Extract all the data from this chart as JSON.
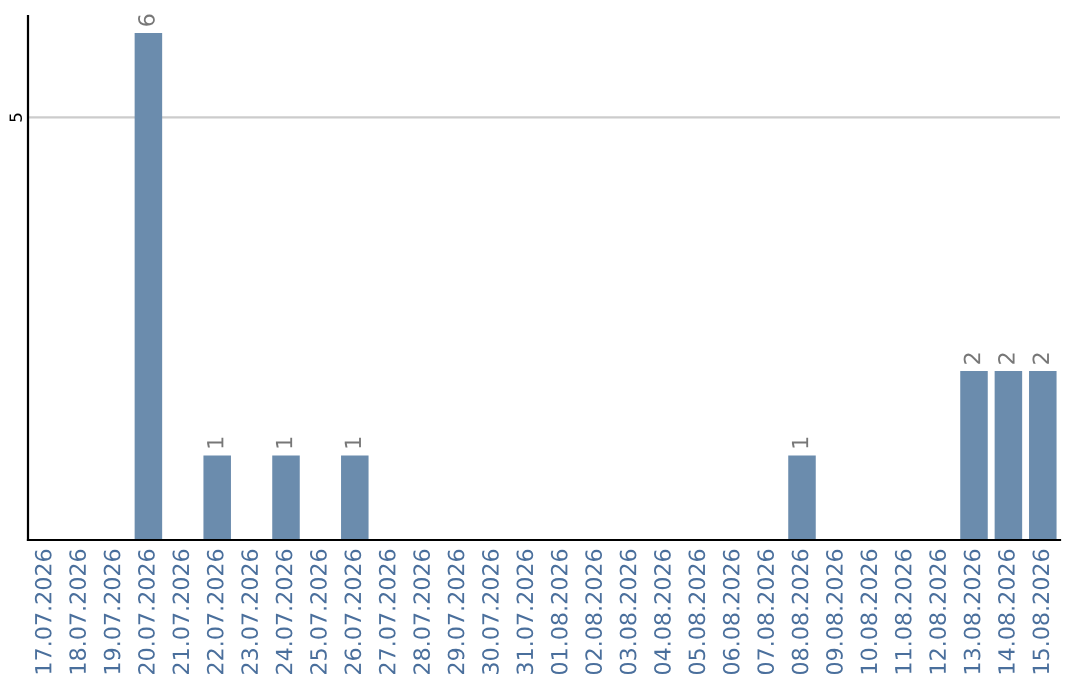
{
  "chart_data": {
    "type": "bar",
    "categories": [
      "17.07.2026",
      "18.07.2026",
      "19.07.2026",
      "20.07.2026",
      "21.07.2026",
      "22.07.2026",
      "23.07.2026",
      "24.07.2026",
      "25.07.2026",
      "26.07.2026",
      "27.07.2026",
      "28.07.2026",
      "29.07.2026",
      "30.07.2026",
      "31.07.2026",
      "01.08.2026",
      "02.08.2026",
      "03.08.2026",
      "04.08.2026",
      "05.08.2026",
      "06.08.2026",
      "07.08.2026",
      "08.08.2026",
      "09.08.2026",
      "10.08.2026",
      "11.08.2026",
      "12.08.2026",
      "13.08.2026",
      "14.08.2026",
      "15.08.2026"
    ],
    "values": [
      0,
      0,
      0,
      6,
      0,
      1,
      0,
      1,
      0,
      1,
      0,
      0,
      0,
      0,
      0,
      0,
      0,
      0,
      0,
      0,
      0,
      0,
      1,
      0,
      0,
      0,
      0,
      2,
      2,
      2
    ],
    "value_labels": [
      null,
      null,
      null,
      "6",
      null,
      "1",
      null,
      "1",
      null,
      "1",
      null,
      null,
      null,
      null,
      null,
      null,
      null,
      null,
      null,
      null,
      null,
      null,
      "1",
      null,
      null,
      null,
      null,
      "2",
      "2",
      "2"
    ],
    "color": "#6b8cad",
    "ylim": [
      0,
      6.2
    ],
    "yticks": [
      5
    ],
    "grid": "y"
  }
}
